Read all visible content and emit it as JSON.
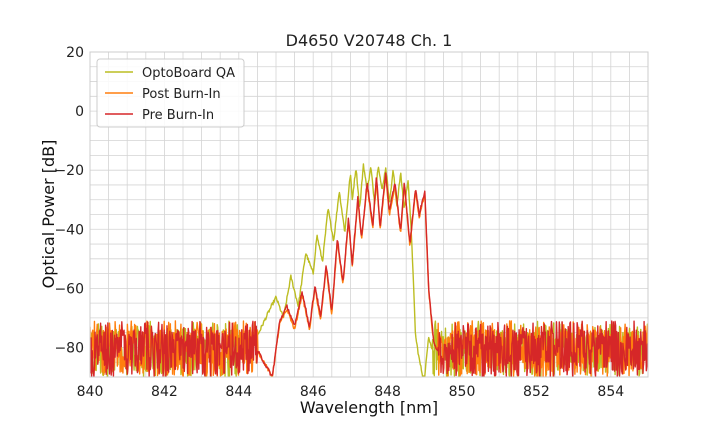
{
  "chart_data": {
    "type": "line",
    "title": "D4650 V20748 Ch. 1",
    "xlabel": "Wavelength [nm]",
    "ylabel": "Optical Power [dB]",
    "xlim": [
      840,
      855
    ],
    "ylim": [
      -90,
      20
    ],
    "xticks": [
      840,
      842,
      844,
      846,
      848,
      850,
      852,
      854
    ],
    "yticks": [
      20,
      0,
      -20,
      -40,
      -60,
      -80
    ],
    "xtick_labels": [
      "840",
      "842",
      "844",
      "846",
      "848",
      "850",
      "852",
      "854"
    ],
    "ytick_labels": [
      "20",
      "0",
      "−20",
      "−40",
      "−60",
      "−80"
    ],
    "grid": true,
    "legend_position": "top-left",
    "noise_floor": {
      "mean": -81,
      "low": -90,
      "high": -71
    },
    "series": [
      {
        "name": "OptoBoard QA",
        "color": "#bcbd22",
        "x": [
          840.0,
          844.0,
          844.5,
          844.8,
          845.0,
          845.2,
          845.4,
          845.6,
          845.8,
          846.0,
          846.1,
          846.25,
          846.4,
          846.55,
          846.7,
          846.85,
          847.0,
          847.05,
          847.15,
          847.25,
          847.35,
          847.45,
          847.55,
          847.65,
          847.75,
          847.85,
          847.95,
          848.05,
          848.15,
          848.25,
          848.35,
          848.45,
          848.55,
          848.65,
          848.75,
          848.85,
          848.95,
          849.0,
          849.1,
          849.2,
          855.0
        ],
        "y": [
          -81,
          -81,
          -76,
          -68,
          -63,
          -70,
          -56,
          -66,
          -48,
          -55,
          -42,
          -51,
          -33,
          -44,
          -27,
          -41,
          -21,
          -30,
          -19,
          -33,
          -18,
          -27,
          -19,
          -31,
          -18,
          -27,
          -19,
          -31,
          -20,
          -32,
          -21,
          -33,
          -23,
          -44,
          -76,
          -84,
          -90,
          -90,
          -76,
          -81,
          -81
        ]
      },
      {
        "name": "Post Burn-In",
        "color": "#ff7f0e",
        "x": [
          840.0,
          844.5,
          844.9,
          845.1,
          845.3,
          845.5,
          845.7,
          845.9,
          846.05,
          846.2,
          846.35,
          846.5,
          846.65,
          846.8,
          846.95,
          847.05,
          847.2,
          847.3,
          847.45,
          847.6,
          847.7,
          847.8,
          847.95,
          848.05,
          848.2,
          848.35,
          848.45,
          848.6,
          848.75,
          848.85,
          849.0,
          849.1,
          849.2,
          849.25,
          849.35,
          855.0
        ],
        "y": [
          -81,
          -81,
          -90,
          -72,
          -67,
          -74,
          -62,
          -74,
          -60,
          -71,
          -53,
          -69,
          -44,
          -59,
          -37,
          -53,
          -30,
          -44,
          -25,
          -40,
          -23,
          -40,
          -22,
          -35,
          -25,
          -42,
          -25,
          -46,
          -27,
          -36,
          -28,
          -60,
          -74,
          -79,
          -81,
          -81
        ]
      },
      {
        "name": "Pre Burn-In",
        "color": "#d62728",
        "x": [
          840.0,
          844.5,
          844.9,
          845.1,
          845.3,
          845.5,
          845.7,
          845.9,
          846.05,
          846.2,
          846.35,
          846.5,
          846.65,
          846.8,
          846.95,
          847.05,
          847.2,
          847.3,
          847.45,
          847.6,
          847.7,
          847.8,
          847.95,
          848.05,
          848.2,
          848.35,
          848.45,
          848.6,
          848.75,
          848.85,
          849.0,
          849.1,
          849.2,
          849.25,
          849.35,
          855.0
        ],
        "y": [
          -81,
          -81,
          -90,
          -71,
          -66,
          -73,
          -61,
          -73,
          -59,
          -70,
          -52,
          -68,
          -43,
          -58,
          -36,
          -52,
          -29,
          -43,
          -24,
          -39,
          -22,
          -39,
          -21,
          -34,
          -24,
          -41,
          -24,
          -45,
          -26,
          -35,
          -27,
          -59,
          -73,
          -79,
          -81,
          -81
        ]
      }
    ]
  }
}
